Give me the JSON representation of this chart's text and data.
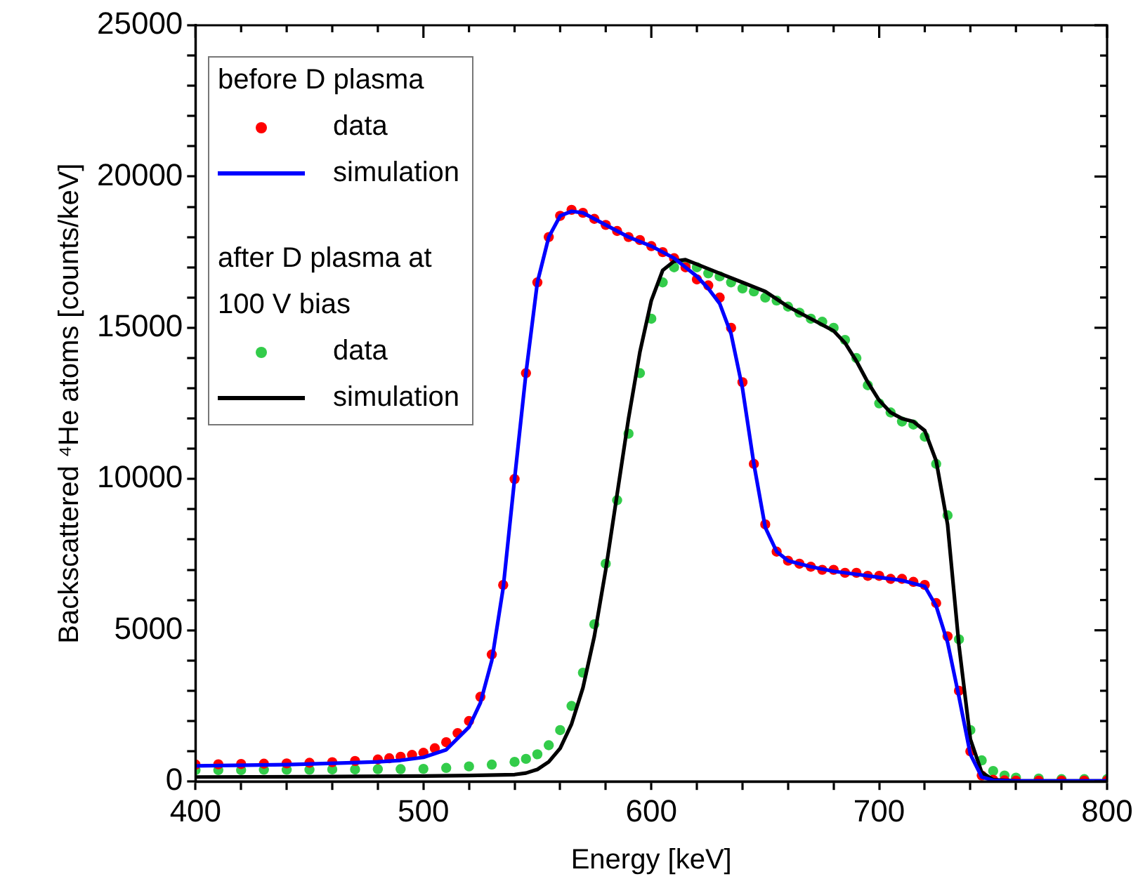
{
  "chart_data": {
    "type": "scatter",
    "xlabel": "Energy [keV]",
    "ylabel": "Backscattered ⁴He atoms [counts/keV]",
    "xlim": [
      400,
      800
    ],
    "ylim": [
      0,
      25000
    ],
    "xticks": [
      400,
      {
        "value": 420,
        "label": null
      },
      {
        "value": 440,
        "label": null
      },
      {
        "value": 460,
        "label": null
      },
      {
        "value": 480,
        "label": null
      },
      500,
      {
        "value": 520,
        "label": null
      },
      {
        "value": 540,
        "label": null
      },
      {
        "value": 560,
        "label": null
      },
      {
        "value": 580,
        "label": null
      },
      600,
      {
        "value": 620,
        "label": null
      },
      {
        "value": 640,
        "label": null
      },
      {
        "value": 660,
        "label": null
      },
      {
        "value": 680,
        "label": null
      },
      700,
      {
        "value": 720,
        "label": null
      },
      {
        "value": 740,
        "label": null
      },
      {
        "value": 760,
        "label": null
      },
      {
        "value": 780,
        "label": null
      },
      800
    ],
    "yticks": [
      0,
      {
        "value": 1000,
        "label": null
      },
      {
        "value": 2000,
        "label": null
      },
      {
        "value": 3000,
        "label": null
      },
      {
        "value": 4000,
        "label": null
      },
      5000,
      {
        "value": 6000,
        "label": null
      },
      {
        "value": 7000,
        "label": null
      },
      {
        "value": 8000,
        "label": null
      },
      {
        "value": 9000,
        "label": null
      },
      10000,
      {
        "value": 11000,
        "label": null
      },
      {
        "value": 12000,
        "label": null
      },
      {
        "value": 13000,
        "label": null
      },
      {
        "value": 14000,
        "label": null
      },
      15000,
      {
        "value": 16000,
        "label": null
      },
      {
        "value": 17000,
        "label": null
      },
      {
        "value": 18000,
        "label": null
      },
      {
        "value": 19000,
        "label": null
      },
      20000,
      {
        "value": 21000,
        "label": null
      },
      {
        "value": 22000,
        "label": null
      },
      {
        "value": 23000,
        "label": null
      },
      {
        "value": 24000,
        "label": null
      },
      25000
    ],
    "grid": false,
    "legend": "top left",
    "annotations": [
      "before D plasma",
      "after D plasma at 100 V bias"
    ],
    "series": [
      {
        "name": "data",
        "type": "scatter",
        "marker": "circle",
        "color": "#ff0000",
        "x": [
          400,
          410,
          420,
          430,
          440,
          450,
          460,
          470,
          480,
          485,
          490,
          495,
          500,
          505,
          510,
          515,
          520,
          525,
          530,
          535,
          540,
          545,
          550,
          555,
          560,
          565,
          570,
          575,
          580,
          585,
          590,
          595,
          600,
          605,
          610,
          615,
          620,
          625,
          630,
          635,
          640,
          645,
          650,
          655,
          660,
          665,
          670,
          675,
          680,
          685,
          690,
          695,
          700,
          705,
          710,
          715,
          720,
          725,
          730,
          735,
          740,
          745,
          750,
          755,
          760,
          770,
          780,
          790,
          800
        ],
        "values": [
          560,
          570,
          580,
          590,
          600,
          620,
          640,
          680,
          730,
          770,
          820,
          880,
          950,
          1100,
          1300,
          1600,
          2000,
          2800,
          4200,
          6500,
          10000,
          13500,
          16500,
          18000,
          18700,
          18900,
          18800,
          18600,
          18400,
          18200,
          18000,
          17900,
          17700,
          17500,
          17300,
          17000,
          16600,
          16400,
          16000,
          15000,
          13200,
          10500,
          8500,
          7600,
          7300,
          7200,
          7100,
          7000,
          7000,
          6900,
          6900,
          6800,
          6800,
          6700,
          6700,
          6600,
          6500,
          5900,
          4800,
          3000,
          1000,
          200,
          60,
          40,
          30,
          30,
          30,
          30,
          30
        ]
      },
      {
        "name": "simulation",
        "type": "line",
        "line_style": "solid",
        "color": "#0000ff",
        "x": [
          400,
          440,
          480,
          490,
          500,
          510,
          520,
          525,
          530,
          535,
          540,
          545,
          550,
          555,
          560,
          565,
          570,
          580,
          590,
          600,
          610,
          615,
          620,
          625,
          630,
          635,
          640,
          645,
          650,
          655,
          660,
          670,
          680,
          690,
          700,
          710,
          720,
          725,
          730,
          735,
          740,
          745,
          750,
          760,
          800
        ],
        "values": [
          520,
          560,
          650,
          700,
          800,
          1050,
          1800,
          2600,
          4000,
          6400,
          10000,
          13500,
          16500,
          18000,
          18700,
          18850,
          18800,
          18400,
          18000,
          17700,
          17300,
          17000,
          16700,
          16300,
          15800,
          14800,
          13000,
          10500,
          8400,
          7600,
          7300,
          7100,
          6950,
          6850,
          6750,
          6650,
          6450,
          5800,
          4600,
          2800,
          900,
          150,
          40,
          20,
          20
        ]
      },
      {
        "name": "data",
        "type": "scatter",
        "marker": "circle",
        "color": "#33cc4a",
        "x": [
          400,
          410,
          420,
          430,
          440,
          450,
          460,
          470,
          480,
          490,
          500,
          510,
          520,
          530,
          540,
          545,
          550,
          555,
          560,
          565,
          570,
          575,
          580,
          585,
          590,
          595,
          600,
          605,
          610,
          615,
          620,
          625,
          630,
          635,
          640,
          645,
          650,
          655,
          660,
          665,
          670,
          675,
          680,
          685,
          690,
          695,
          700,
          705,
          710,
          715,
          720,
          725,
          730,
          735,
          740,
          745,
          750,
          755,
          760,
          770,
          780,
          790,
          800
        ],
        "values": [
          380,
          380,
          380,
          390,
          390,
          390,
          400,
          400,
          410,
          410,
          420,
          450,
          500,
          560,
          650,
          750,
          900,
          1200,
          1700,
          2500,
          3600,
          5200,
          7200,
          9300,
          11500,
          13500,
          15300,
          16500,
          17000,
          17100,
          17000,
          16800,
          16700,
          16500,
          16300,
          16200,
          16000,
          15900,
          15700,
          15500,
          15300,
          15200,
          15000,
          14600,
          14000,
          13100,
          12500,
          12200,
          11900,
          11800,
          11400,
          10500,
          8800,
          4700,
          1700,
          700,
          350,
          200,
          130,
          100,
          80,
          80,
          80
        ]
      },
      {
        "name": "simulation",
        "type": "line",
        "line_style": "solid",
        "color": "#000000",
        "x": [
          400,
          450,
          500,
          520,
          540,
          545,
          550,
          555,
          560,
          565,
          570,
          575,
          580,
          585,
          590,
          595,
          600,
          605,
          610,
          615,
          620,
          630,
          640,
          650,
          660,
          670,
          680,
          685,
          690,
          695,
          700,
          705,
          710,
          715,
          720,
          725,
          730,
          735,
          740,
          745,
          750,
          760,
          800
        ],
        "values": [
          150,
          160,
          180,
          200,
          230,
          280,
          400,
          650,
          1100,
          1900,
          3100,
          4800,
          7000,
          9500,
          12000,
          14200,
          15900,
          16900,
          17200,
          17250,
          17100,
          16800,
          16500,
          16200,
          15700,
          15300,
          14900,
          14500,
          13900,
          13200,
          12600,
          12200,
          12000,
          11900,
          11600,
          10600,
          8500,
          4500,
          1400,
          300,
          60,
          20,
          20
        ]
      }
    ]
  }
}
